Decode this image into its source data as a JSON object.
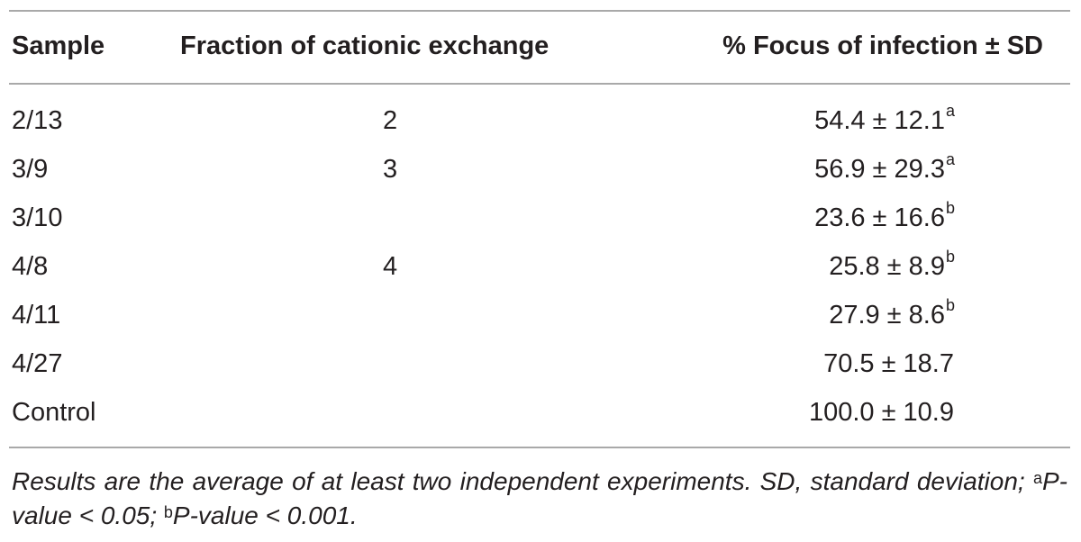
{
  "table": {
    "headers": {
      "sample": "Sample",
      "fraction": "Fraction of cationic exchange",
      "focus": "% Focus of infection ± SD"
    },
    "rows": [
      {
        "sample": "2/13",
        "fraction": "2",
        "value": "54.4 ± 12.1",
        "sup": "a"
      },
      {
        "sample": "3/9",
        "fraction": "3",
        "value": "56.9 ± 29.3",
        "sup": "a"
      },
      {
        "sample": "3/10",
        "fraction": "",
        "value": "23.6 ± 16.6",
        "sup": "b"
      },
      {
        "sample": "4/8",
        "fraction": "4",
        "value": "25.8 ± 8.9",
        "sup": "b"
      },
      {
        "sample": "4/11",
        "fraction": "",
        "value": "27.9 ± 8.6",
        "sup": "b"
      },
      {
        "sample": "4/27",
        "fraction": "",
        "value": "70.5 ± 18.7",
        "sup": ""
      },
      {
        "sample": "Control",
        "fraction": "",
        "value": "100.0 ± 10.9",
        "sup": ""
      }
    ]
  },
  "footnote": {
    "text_1": "Results are the average of at least two independent experiments. SD, standard deviation; ",
    "sup_a": "a",
    "text_2": "P-value < 0.05; ",
    "sup_b": "b",
    "text_3": "P-value < 0.001."
  }
}
